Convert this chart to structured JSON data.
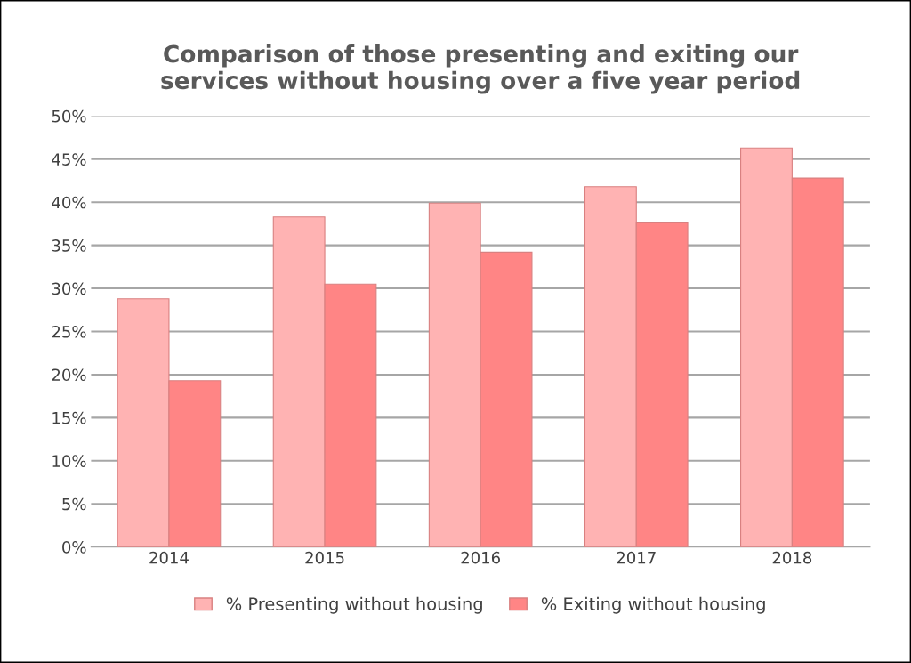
{
  "chart_data": {
    "type": "bar",
    "title": "Comparison of those presenting and exiting our\nservices without housing over a five year period",
    "categories": [
      "2014",
      "2015",
      "2016",
      "2017",
      "2018"
    ],
    "series": [
      {
        "name": "% Presenting without housing",
        "color": "#ffb3b3",
        "values": [
          28.8,
          38.3,
          39.9,
          41.8,
          46.3
        ]
      },
      {
        "name": "% Exiting without housing",
        "color": "#ff8585",
        "values": [
          19.3,
          30.5,
          34.2,
          37.6,
          42.8
        ]
      }
    ],
    "ylim": [
      0,
      50
    ],
    "yticks": [
      {
        "value": 0,
        "label": "0%"
      },
      {
        "value": 5,
        "label": "5%"
      },
      {
        "value": 10,
        "label": "10%"
      },
      {
        "value": 15,
        "label": "15%"
      },
      {
        "value": 20,
        "label": "20%"
      },
      {
        "value": 25,
        "label": "25%"
      },
      {
        "value": 30,
        "label": "30%"
      },
      {
        "value": 35,
        "label": "35%"
      },
      {
        "value": 40,
        "label": "40%"
      },
      {
        "value": 45,
        "label": "45%"
      },
      {
        "value": 50,
        "label": "50%"
      }
    ],
    "grid": "y",
    "legend": "bottom"
  }
}
